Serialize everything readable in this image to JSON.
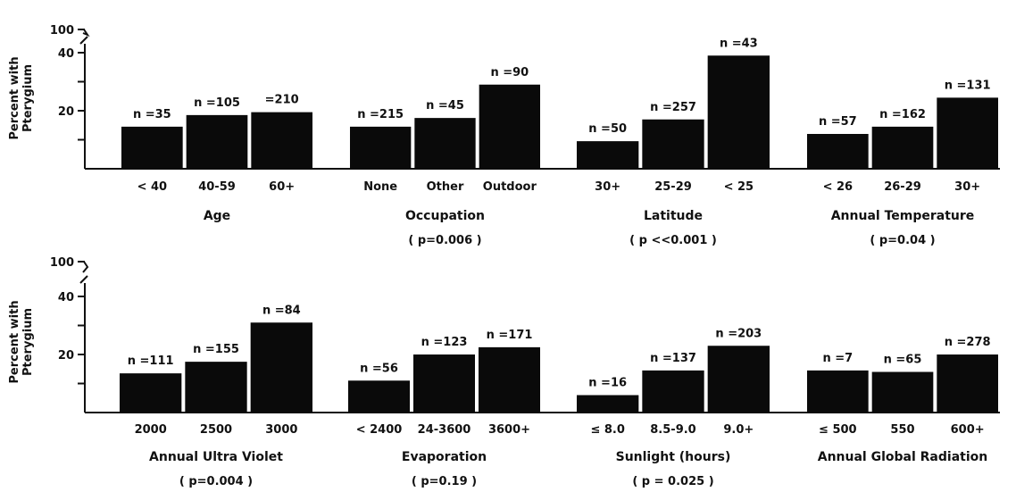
{
  "chart_data": [
    {
      "type": "bar",
      "ylabel": [
        "Percent with",
        "Pterygium"
      ],
      "yticks": [
        20,
        40,
        100
      ],
      "axis_break": true,
      "groups": [
        {
          "label": "Age",
          "p": "",
          "bars": [
            {
              "category": "< 40",
              "value": 14.5,
              "n": "n =35"
            },
            {
              "category": "40-59",
              "value": 18.5,
              "n": "n =105"
            },
            {
              "category": "60+",
              "value": 19.5,
              "n": "=210"
            }
          ]
        },
        {
          "label": "Occupation",
          "p": "( p=0.006 )",
          "bars": [
            {
              "category": "None",
              "value": 14.5,
              "n": "n =215"
            },
            {
              "category": "Other",
              "value": 17.5,
              "n": "n =45"
            },
            {
              "category": "Outdoor",
              "value": 29,
              "n": "n =90"
            }
          ]
        },
        {
          "label": "Latitude",
          "p": "( p <<0.001 )",
          "bars": [
            {
              "category": "30+",
              "value": 9.5,
              "n": "n =50"
            },
            {
              "category": "25-29",
              "value": 17,
              "n": "n =257"
            },
            {
              "category": "< 25",
              "value": 39,
              "n": "n =43"
            }
          ]
        },
        {
          "label": "Annual Temperature",
          "p": "( p=0.04 )",
          "bars": [
            {
              "category": "< 26",
              "value": 12,
              "n": "n =57"
            },
            {
              "category": "26-29",
              "value": 14.5,
              "n": "n =162"
            },
            {
              "category": "30+",
              "value": 24.5,
              "n": "n =131"
            }
          ]
        }
      ]
    },
    {
      "type": "bar",
      "ylabel": [
        "Percent with",
        "Pterygium"
      ],
      "yticks": [
        20,
        40,
        100
      ],
      "axis_break": true,
      "groups": [
        {
          "label": "Annual Ultra Violet",
          "p": "( p=0.004 )",
          "bars": [
            {
              "category": "2000",
              "value": 13.5,
              "n": "n =111"
            },
            {
              "category": "2500",
              "value": 17.5,
              "n": "n =155"
            },
            {
              "category": "3000",
              "value": 31,
              "n": "n =84"
            }
          ]
        },
        {
          "label": "Evaporation",
          "p": "( p=0.19 )",
          "bars": [
            {
              "category": "< 2400",
              "value": 11,
              "n": "n =56"
            },
            {
              "category": "24-3600",
              "value": 20,
              "n": "n =123"
            },
            {
              "category": "3600+",
              "value": 22.5,
              "n": "n =171"
            }
          ]
        },
        {
          "label": "Sunlight (hours)",
          "p": "( p = 0.025 )",
          "bars": [
            {
              "category": "≤ 8.0",
              "value": 6,
              "n": "n =16"
            },
            {
              "category": "8.5-9.0",
              "value": 14.5,
              "n": "n =137"
            },
            {
              "category": "9.0+",
              "value": 23,
              "n": "n =203"
            }
          ]
        },
        {
          "label": "Annual Global Radiation",
          "p": "",
          "bars": [
            {
              "category": "≤ 500",
              "value": 14.5,
              "n": "n =7"
            },
            {
              "category": "550",
              "value": 14,
              "n": "n =65"
            },
            {
              "category": "600+",
              "value": 20,
              "n": "n =278"
            }
          ]
        }
      ]
    }
  ]
}
